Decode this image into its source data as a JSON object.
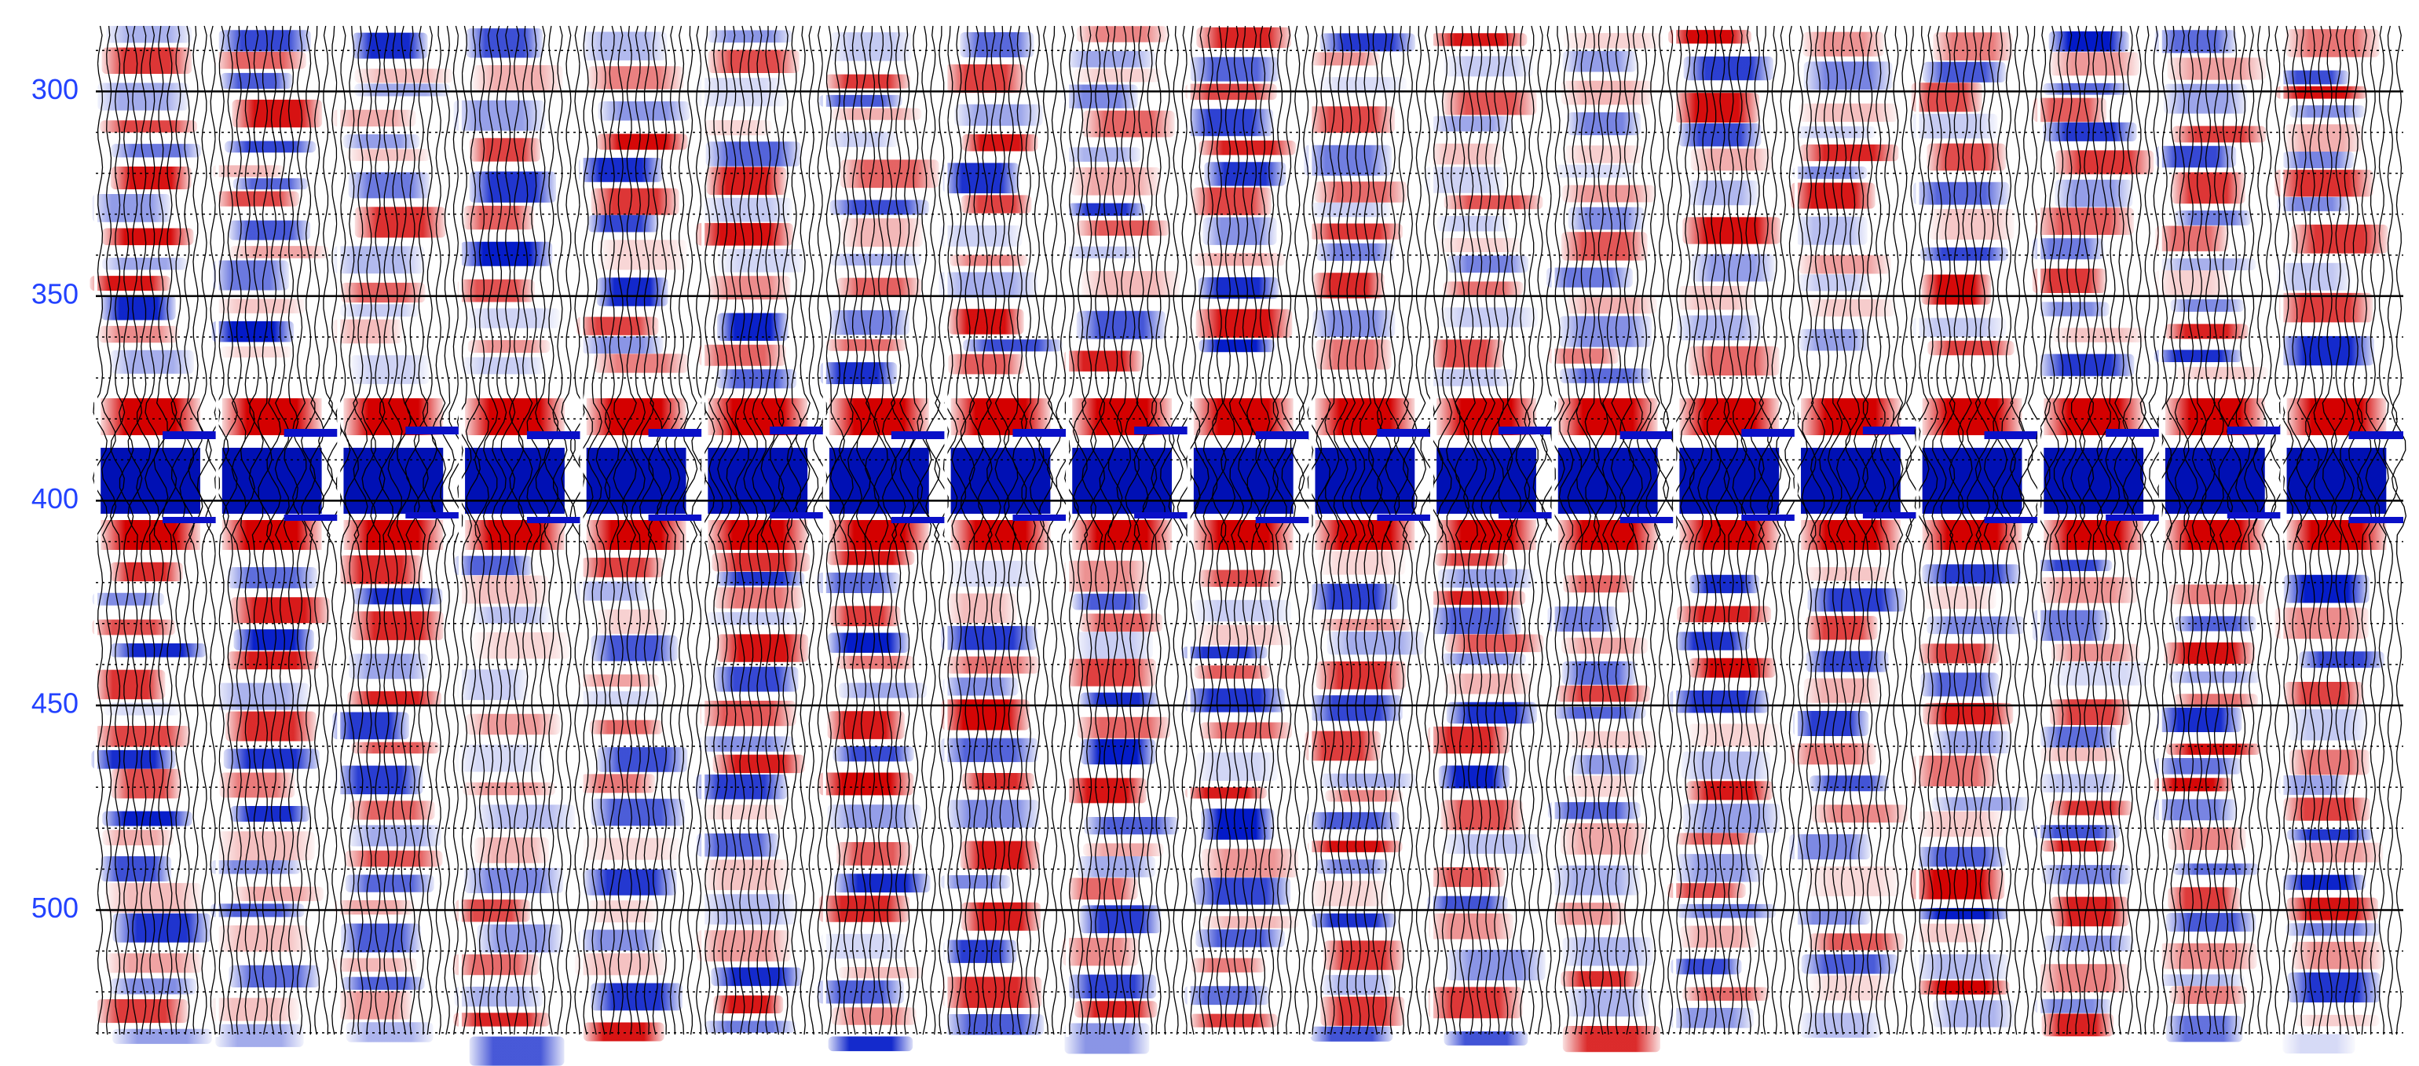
{
  "chart_data": {
    "type": "seismic",
    "ylim": [
      284,
      531
    ],
    "yticks": [
      300,
      350,
      400,
      450,
      500
    ],
    "grid": true,
    "tick_color": "#2342ff"
  }
}
